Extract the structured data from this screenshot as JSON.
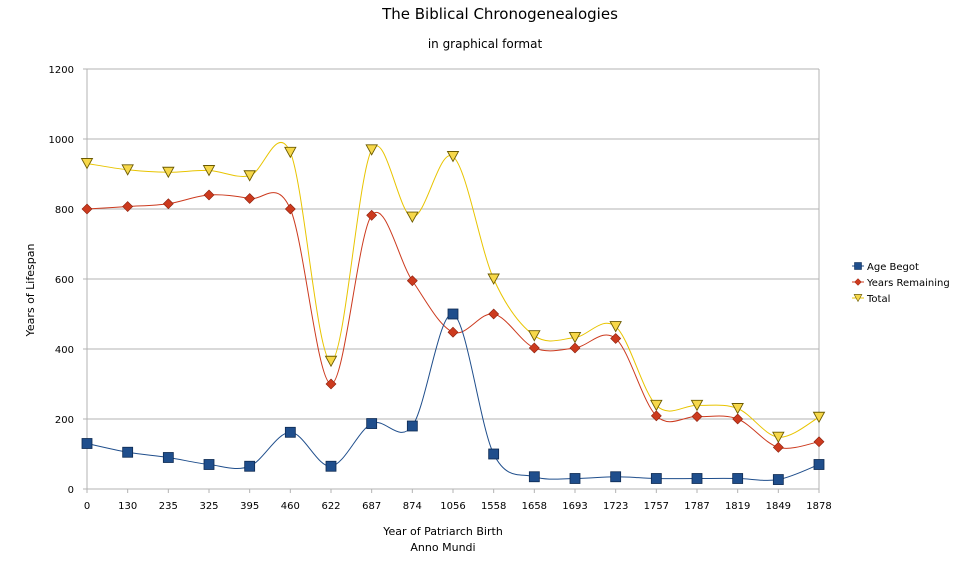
{
  "chart_data": {
    "type": "line",
    "title": "The Biblical Chronogenealogies",
    "subtitle": "in graphical format",
    "xlabel": "Year of Patriarch Birth",
    "xlabel2": "Anno Mundi",
    "ylabel": "Years of Lifespan",
    "ylim": [
      0,
      1200
    ],
    "yticks": [
      0,
      200,
      400,
      600,
      800,
      1000,
      1200
    ],
    "grid": "horizontal",
    "legend_position": "right",
    "categories": [
      "0",
      "130",
      "235",
      "325",
      "395",
      "460",
      "622",
      "687",
      "874",
      "1056",
      "1558",
      "1658",
      "1693",
      "1723",
      "1757",
      "1787",
      "1819",
      "1849",
      "1878"
    ],
    "series": [
      {
        "name": "Age Begot",
        "color": "#1f4e8c",
        "marker": "square",
        "values": [
          130,
          105,
          90,
          70,
          65,
          162,
          65,
          187,
          180,
          500,
          100,
          35,
          30,
          35,
          30,
          30,
          30,
          27,
          70
        ]
      },
      {
        "name": "Years Remaining",
        "color": "#cc3a1e",
        "marker": "diamond",
        "values": [
          800,
          807,
          815,
          840,
          830,
          800,
          300,
          782,
          595,
          448,
          500,
          403,
          403,
          430,
          209,
          207,
          200,
          119,
          135
        ]
      },
      {
        "name": "Total",
        "color": "#e8c400",
        "marker": "triangle-down",
        "values": [
          930,
          912,
          905,
          910,
          895,
          962,
          365,
          969,
          777,
          950,
          600,
          438,
          433,
          464,
          239,
          239,
          230,
          148,
          205
        ]
      }
    ]
  }
}
